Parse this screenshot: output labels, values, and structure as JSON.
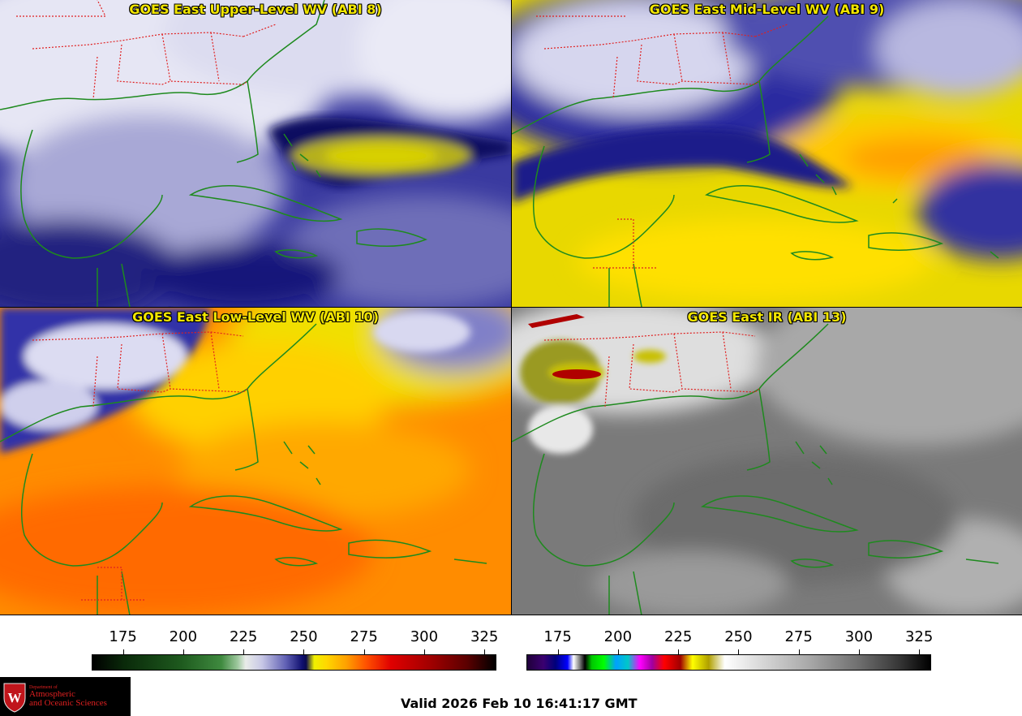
{
  "panels": {
    "upper": {
      "title": "GOES East Upper-Level WV (ABI 8)",
      "band": "ABI 8"
    },
    "mid": {
      "title": "GOES East Mid-Level WV (ABI 9)",
      "band": "ABI 9"
    },
    "low": {
      "title": "GOES East Low-Level WV (ABI 10)",
      "band": "ABI 10"
    },
    "ir": {
      "title": "GOES East IR (ABI 13)",
      "band": "ABI 13"
    }
  },
  "colorbars": {
    "wv": {
      "ticks": [
        "175",
        "200",
        "225",
        "250",
        "275",
        "300",
        "325"
      ],
      "range": [
        162,
        330
      ],
      "tick_values": [
        175,
        200,
        225,
        250,
        275,
        300,
        325
      ]
    },
    "ir": {
      "ticks": [
        "175",
        "200",
        "225",
        "250",
        "275",
        "300",
        "325"
      ],
      "range": [
        162,
        330
      ],
      "tick_values": [
        175,
        200,
        225,
        250,
        275,
        300,
        325
      ]
    }
  },
  "colors": {
    "title_text": "#f2e600",
    "coastline": "#1e8a1e",
    "state_borders": "#e02020",
    "logo_text": "#e02020"
  },
  "logo": {
    "dept": "Department of",
    "line1": "Atmospheric",
    "line2": "and Oceanic Sciences"
  },
  "footer": {
    "valid_time": "Valid 2026 Feb 10 16:41:17 GMT"
  }
}
